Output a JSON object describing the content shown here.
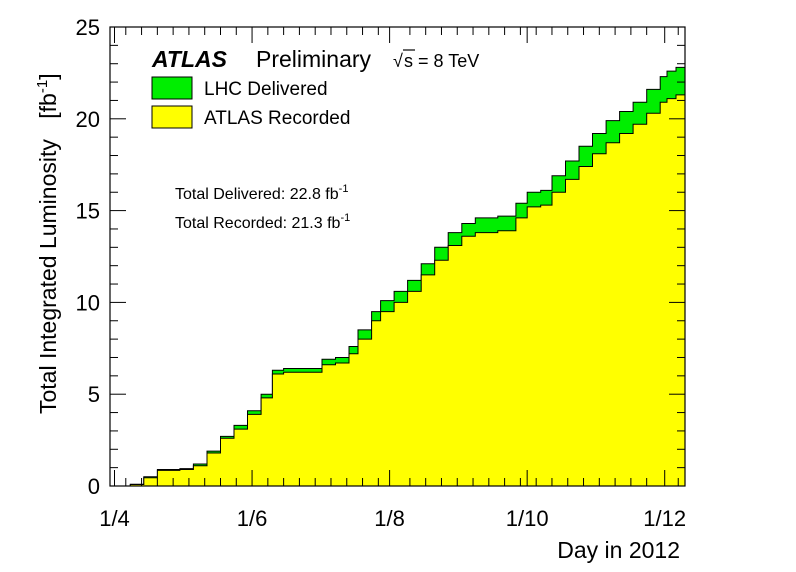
{
  "chart_data": {
    "type": "area",
    "header": {
      "experiment": "ATLAS",
      "status": "Preliminary",
      "sqrt_symbol": "√",
      "energy_text": "s = 8 TeV"
    },
    "xlabel": "Day in 2012",
    "ylabel": "Total Integrated Luminosity",
    "ylabel_unit_base": "fb",
    "ylabel_unit_exp": "-1",
    "xlim": [
      "2012-03-30",
      "2012-12-10"
    ],
    "ylim": [
      0,
      25
    ],
    "x_ticks": [
      {
        "date": "2012-04-01",
        "label": "1/4"
      },
      {
        "date": "2012-06-01",
        "label": "1/6"
      },
      {
        "date": "2012-08-01",
        "label": "1/8"
      },
      {
        "date": "2012-10-01",
        "label": "1/10"
      },
      {
        "date": "2012-12-01",
        "label": "1/12"
      }
    ],
    "y_ticks": [
      {
        "value": 0,
        "label": "0"
      },
      {
        "value": 5,
        "label": "5"
      },
      {
        "value": 10,
        "label": "10"
      },
      {
        "value": 15,
        "label": "15"
      },
      {
        "value": 20,
        "label": "20"
      },
      {
        "value": 25,
        "label": "25"
      }
    ],
    "legend": {
      "placement": "top-left"
    },
    "annotations": [
      {
        "name": "total-delivered",
        "text": "Total Delivered: 22.8 fb",
        "sup": "-1"
      },
      {
        "name": "total-recorded",
        "text": "Total Recorded: 21.3 fb",
        "sup": "-1"
      }
    ],
    "x": [
      "2012-04-04",
      "2012-04-08",
      "2012-04-14",
      "2012-04-20",
      "2012-04-30",
      "2012-05-06",
      "2012-05-12",
      "2012-05-18",
      "2012-05-24",
      "2012-05-30",
      "2012-06-05",
      "2012-06-10",
      "2012-06-15",
      "2012-06-18",
      "2012-06-22",
      "2012-07-02",
      "2012-07-08",
      "2012-07-14",
      "2012-07-18",
      "2012-07-24",
      "2012-07-28",
      "2012-08-03",
      "2012-08-09",
      "2012-08-15",
      "2012-08-21",
      "2012-08-27",
      "2012-09-02",
      "2012-09-08",
      "2012-09-14",
      "2012-09-18",
      "2012-09-26",
      "2012-10-01",
      "2012-10-07",
      "2012-10-12",
      "2012-10-18",
      "2012-10-24",
      "2012-10-30",
      "2012-11-05",
      "2012-11-11",
      "2012-11-17",
      "2012-11-23",
      "2012-11-29",
      "2012-12-02",
      "2012-12-06"
    ],
    "series": [
      {
        "name": "LHC Delivered",
        "color": "#00ee00",
        "values": [
          0,
          0.1,
          0.5,
          0.9,
          0.95,
          1.2,
          1.9,
          2.7,
          3.3,
          4.1,
          5.0,
          6.3,
          6.4,
          6.4,
          6.4,
          6.9,
          7.0,
          7.6,
          8.5,
          9.5,
          10.1,
          10.6,
          11.2,
          12.1,
          13.0,
          13.8,
          14.3,
          14.6,
          14.6,
          14.7,
          15.4,
          16.0,
          16.1,
          16.9,
          17.7,
          18.5,
          19.2,
          19.9,
          20.4,
          20.9,
          21.6,
          22.3,
          22.6,
          22.8
        ]
      },
      {
        "name": "ATLAS Recorded",
        "color": "#ffff00",
        "values": [
          0,
          0.08,
          0.45,
          0.85,
          0.9,
          1.1,
          1.8,
          2.6,
          3.1,
          3.9,
          4.8,
          6.1,
          6.2,
          6.2,
          6.2,
          6.6,
          6.7,
          7.2,
          8.0,
          9.0,
          9.5,
          10.0,
          10.6,
          11.5,
          12.3,
          13.1,
          13.6,
          13.8,
          13.8,
          13.9,
          14.6,
          15.2,
          15.3,
          16.0,
          16.7,
          17.4,
          18.1,
          18.7,
          19.2,
          19.7,
          20.3,
          20.9,
          21.1,
          21.3
        ]
      }
    ]
  }
}
